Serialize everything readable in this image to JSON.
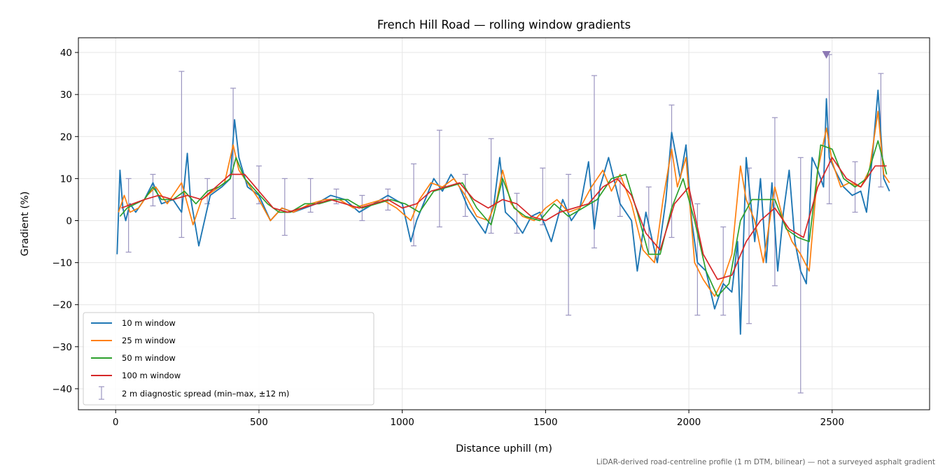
{
  "chart_data": {
    "type": "line",
    "title": "French Hill Road — rolling window gradients",
    "xlabel": "Distance uphill (m)",
    "ylabel": "Gradient (%)",
    "xlim": [
      -130,
      2840
    ],
    "ylim": [
      -45,
      43.5
    ],
    "x_ticks": [
      0,
      500,
      1000,
      1500,
      2000,
      2500
    ],
    "y_ticks": [
      -40,
      -30,
      -20,
      -10,
      0,
      10,
      20,
      30,
      40
    ],
    "x_tick_labels": [
      "0",
      "500",
      "1000",
      "1500",
      "2000",
      "2500"
    ],
    "y_tick_labels": [
      "−40",
      "−30",
      "−20",
      "−10",
      "0",
      "10",
      "20",
      "30",
      "40"
    ],
    "grid": true,
    "legend_position": "lower-left",
    "footnote": "LiDAR-derived road-centreline profile (1 m DTM, bilinear) — not a surveyed asphalt gradient",
    "marker": {
      "x": 2480,
      "y": 39.5,
      "color": "#8c78b4",
      "shape": "triangle-down"
    },
    "series": [
      {
        "name": "10 m window",
        "color": "#1f77b4",
        "x": [
          5,
          15,
          25,
          35,
          50,
          70,
          100,
          130,
          160,
          200,
          230,
          250,
          260,
          290,
          330,
          370,
          400,
          415,
          430,
          460,
          500,
          540,
          580,
          620,
          660,
          700,
          750,
          800,
          850,
          900,
          950,
          1000,
          1030,
          1050,
          1080,
          1110,
          1140,
          1170,
          1200,
          1230,
          1260,
          1290,
          1320,
          1340,
          1360,
          1390,
          1420,
          1450,
          1480,
          1520,
          1560,
          1590,
          1620,
          1650,
          1670,
          1690,
          1720,
          1760,
          1800,
          1820,
          1850,
          1890,
          1920,
          1940,
          1970,
          1990,
          2010,
          2030,
          2060,
          2090,
          2120,
          2150,
          2170,
          2180,
          2200,
          2230,
          2250,
          2270,
          2290,
          2310,
          2330,
          2350,
          2370,
          2390,
          2410,
          2430,
          2450,
          2470,
          2480,
          2490,
          2510,
          2540,
          2570,
          2600,
          2620,
          2640,
          2660,
          2680,
          2700
        ],
        "y": [
          -8,
          12,
          3,
          0,
          4,
          2,
          5,
          9,
          4,
          5,
          2,
          16,
          6,
          -6,
          6,
          8,
          10,
          24,
          15,
          8,
          6,
          0,
          3,
          2,
          3,
          4,
          6,
          5,
          2,
          4,
          6,
          4,
          -5,
          0,
          5,
          10,
          7,
          11,
          8,
          3,
          0,
          -3,
          4,
          15,
          2,
          0,
          -3,
          1,
          2,
          -5,
          5,
          0,
          3,
          14,
          -2,
          8,
          15,
          4,
          0,
          -12,
          2,
          -10,
          5,
          21,
          10,
          18,
          0,
          -10,
          -12,
          -21,
          -15,
          -17,
          -5,
          -27,
          15,
          -5,
          10,
          -10,
          9,
          -12,
          2,
          12,
          -5,
          -12,
          -15,
          15,
          12,
          8,
          29,
          15,
          12,
          8,
          6,
          7,
          2,
          15,
          31,
          10,
          7
        ]
      },
      {
        "name": "25 m window",
        "color": "#ff7f0e",
        "x": [
          10,
          30,
          50,
          80,
          110,
          140,
          180,
          230,
          270,
          300,
          340,
          380,
          410,
          430,
          460,
          500,
          540,
          580,
          620,
          680,
          730,
          780,
          830,
          880,
          930,
          980,
          1030,
          1060,
          1100,
          1140,
          1180,
          1220,
          1260,
          1300,
          1330,
          1350,
          1380,
          1420,
          1460,
          1500,
          1540,
          1580,
          1620,
          1660,
          1700,
          1730,
          1760,
          1800,
          1840,
          1880,
          1910,
          1940,
          1960,
          1990,
          2020,
          2050,
          2090,
          2120,
          2150,
          2180,
          2200,
          2230,
          2260,
          2300,
          2330,
          2360,
          2390,
          2420,
          2450,
          2480,
          2500,
          2530,
          2560,
          2600,
          2630,
          2660,
          2680,
          2700
        ],
        "y": [
          2,
          6,
          2,
          3,
          6,
          8,
          4,
          9,
          -1,
          5,
          7,
          9,
          18,
          12,
          9,
          5,
          0,
          3,
          2,
          4,
          5,
          5,
          3,
          4,
          5,
          3,
          0,
          5,
          9,
          8,
          10,
          6,
          1,
          0,
          5,
          12,
          4,
          1,
          0,
          3,
          5,
          2,
          3,
          8,
          12,
          7,
          11,
          4,
          -7,
          -10,
          5,
          17,
          8,
          15,
          -10,
          -14,
          -18,
          -14,
          -8,
          13,
          5,
          0,
          -10,
          8,
          0,
          -5,
          -8,
          -12,
          12,
          22,
          14,
          8,
          9,
          8,
          12,
          26,
          11,
          9
        ]
      },
      {
        "name": "50 m window",
        "color": "#2ca02c",
        "x": [
          15,
          40,
          70,
          100,
          130,
          160,
          200,
          240,
          280,
          320,
          360,
          400,
          420,
          450,
          490,
          530,
          570,
          610,
          660,
          710,
          760,
          810,
          860,
          910,
          960,
          1010,
          1060,
          1110,
          1160,
          1210,
          1260,
          1310,
          1350,
          1390,
          1430,
          1480,
          1530,
          1580,
          1630,
          1680,
          1730,
          1780,
          1820,
          1860,
          1900,
          1940,
          1980,
          2020,
          2060,
          2100,
          2140,
          2180,
          2220,
          2260,
          2300,
          2340,
          2380,
          2420,
          2460,
          2500,
          2540,
          2580,
          2620,
          2660,
          2690
        ],
        "y": [
          1,
          3,
          4,
          5,
          8,
          5,
          5,
          7,
          4,
          7,
          8,
          10,
          15,
          10,
          7,
          4,
          2,
          2,
          4,
          4,
          5,
          5,
          3,
          4,
          5,
          4,
          2,
          7,
          8,
          9,
          3,
          -1,
          10,
          3,
          1,
          0,
          4,
          1,
          3,
          5,
          10,
          11,
          2,
          -8,
          -8,
          3,
          10,
          0,
          -12,
          -18,
          -15,
          0,
          5,
          5,
          5,
          -2,
          -4,
          -5,
          18,
          17,
          10,
          8,
          10,
          19,
          11
        ]
      },
      {
        "name": "100 m window",
        "color": "#d62728",
        "x": [
          20,
          60,
          100,
          150,
          200,
          250,
          300,
          350,
          400,
          450,
          500,
          550,
          600,
          650,
          700,
          750,
          800,
          850,
          900,
          950,
          1000,
          1050,
          1100,
          1150,
          1200,
          1250,
          1300,
          1350,
          1400,
          1450,
          1500,
          1550,
          1600,
          1650,
          1700,
          1750,
          1800,
          1850,
          1900,
          1950,
          2000,
          2050,
          2100,
          2150,
          2200,
          2250,
          2300,
          2350,
          2400,
          2450,
          2500,
          2550,
          2600,
          2650,
          2690
        ],
        "y": [
          3,
          4,
          5,
          6,
          5,
          6,
          5,
          8,
          11,
          11,
          7,
          3,
          2,
          3,
          4,
          5,
          4,
          3,
          4,
          5,
          3,
          4,
          7,
          8,
          9,
          5,
          3,
          5,
          4,
          1,
          0,
          2,
          3,
          4,
          8,
          10,
          6,
          -3,
          -7,
          4,
          8,
          -8,
          -14,
          -13,
          -5,
          0,
          3,
          -2,
          -4,
          8,
          15,
          10,
          8,
          13,
          13
        ]
      }
    ],
    "errorbars": {
      "name": "2 m diagnostic spread (min–max, ±12 m)",
      "color": "#9b95c0",
      "x": [
        45,
        130,
        230,
        320,
        410,
        500,
        590,
        680,
        770,
        860,
        950,
        1040,
        1130,
        1220,
        1310,
        1400,
        1490,
        1580,
        1670,
        1760,
        1860,
        1940,
        2030,
        2120,
        2210,
        2300,
        2390,
        2490,
        2580,
        2670
      ],
      "low": [
        -7.5,
        3.5,
        -4,
        4,
        0.5,
        4,
        -3.5,
        2,
        4,
        0,
        2.5,
        -6,
        -1.5,
        1,
        -3,
        -3,
        -1,
        -22.5,
        -6.5,
        1,
        -8,
        -4,
        -22.5,
        -22.5,
        -24.5,
        -15.5,
        -41,
        4,
        2,
        8
      ],
      "high": [
        10,
        11,
        35.5,
        10,
        31.5,
        13,
        10,
        10,
        7.5,
        6,
        7.5,
        13.5,
        21.5,
        11,
        19.5,
        6.5,
        12.5,
        11,
        34.5,
        10,
        8,
        27.5,
        4,
        -1.5,
        12.5,
        24.5,
        15,
        39.5,
        14,
        35
      ]
    }
  }
}
